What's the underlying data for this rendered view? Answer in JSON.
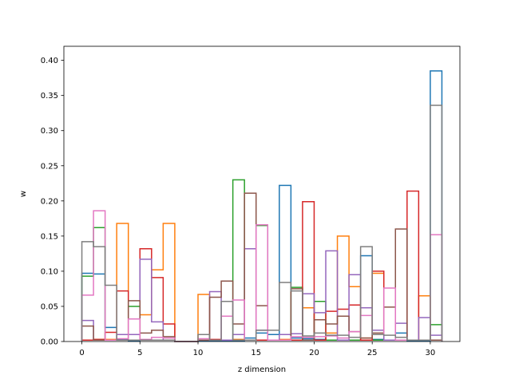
{
  "chart_data": {
    "type": "histogram-step",
    "xlabel": "z dimension",
    "ylabel": "w",
    "xlim": [
      -1.55,
      32.55
    ],
    "ylim": [
      0,
      0.42
    ],
    "xticks": [
      0,
      5,
      10,
      15,
      20,
      25,
      30
    ],
    "yticks": [
      0.0,
      0.05,
      0.1,
      0.15,
      0.2,
      0.25,
      0.3,
      0.35,
      0.4
    ],
    "ytick_labels": [
      "0.00",
      "0.05",
      "0.10",
      "0.15",
      "0.20",
      "0.25",
      "0.30",
      "0.35",
      "0.40"
    ],
    "bins": [
      0,
      1,
      2,
      3,
      4,
      5,
      6,
      7,
      8,
      9,
      10,
      11,
      12,
      13,
      14,
      15,
      16,
      17,
      18,
      19,
      20,
      21,
      22,
      23,
      24,
      25,
      26,
      27,
      28,
      29,
      30,
      31
    ],
    "series": [
      {
        "color": "#1f77b4",
        "values": [
          0.097,
          0.096,
          0.02,
          0.003,
          0.001,
          0.002,
          0.002,
          0.002,
          0,
          0,
          0.001,
          0.001,
          0.001,
          0.001,
          0.005,
          0.012,
          0.01,
          0.222,
          0.005,
          0.004,
          0.003,
          0.002,
          0.002,
          0.002,
          0.122,
          0.003,
          0.002,
          0.012,
          0.001,
          0.001,
          0.385
        ]
      },
      {
        "color": "#ff7f0e",
        "values": [
          0.002,
          0.003,
          0.003,
          0.168,
          0.002,
          0.038,
          0.102,
          0.168,
          0,
          0,
          0.067,
          0.002,
          0.002,
          0.003,
          0.002,
          0.002,
          0.002,
          0.003,
          0.002,
          0.048,
          0.002,
          0.012,
          0.15,
          0.078,
          0.005,
          0.097,
          0.002,
          0.002,
          0.002,
          0.065,
          0.002
        ]
      },
      {
        "color": "#2ca02c",
        "values": [
          0.093,
          0.162,
          0.002,
          0.002,
          0.05,
          0.002,
          0.002,
          0.002,
          0,
          0,
          0.002,
          0.002,
          0.002,
          0.23,
          0.002,
          0.165,
          0.002,
          0.002,
          0.077,
          0.002,
          0.057,
          0.002,
          0.002,
          0.002,
          0.002,
          0.002,
          0.002,
          0.002,
          0.002,
          0.002,
          0.024
        ]
      },
      {
        "color": "#d62728",
        "values": [
          0.002,
          0.003,
          0.013,
          0.072,
          0.002,
          0.132,
          0.091,
          0.025,
          0,
          0,
          0.002,
          0.003,
          0.002,
          0.002,
          0.002,
          0.002,
          0.002,
          0.002,
          0.002,
          0.199,
          0.002,
          0.043,
          0.046,
          0.052,
          0.002,
          0.1,
          0.002,
          0.002,
          0.214,
          0.002,
          0.002
        ]
      },
      {
        "color": "#9467bd",
        "values": [
          0.03,
          0.002,
          0.002,
          0.01,
          0.01,
          0.117,
          0.028,
          0.002,
          0,
          0,
          0.002,
          0.071,
          0.002,
          0.01,
          0.132,
          0.016,
          0.002,
          0.01,
          0.011,
          0.068,
          0.041,
          0.129,
          0.002,
          0.095,
          0.048,
          0.016,
          0.002,
          0.026,
          0.002,
          0.034,
          0.009
        ]
      },
      {
        "color": "#8c564b",
        "values": [
          0.022,
          0.002,
          0.002,
          0.002,
          0.058,
          0.012,
          0.016,
          0.007,
          0,
          0,
          0.002,
          0.063,
          0.086,
          0.025,
          0.211,
          0.051,
          0.002,
          0.002,
          0.075,
          0.002,
          0.031,
          0.025,
          0.036,
          0.014,
          0.005,
          0.012,
          0.049,
          0.16,
          0.002,
          0.002,
          0.002
        ]
      },
      {
        "color": "#e377c2",
        "values": [
          0.066,
          0.186,
          0.002,
          0.004,
          0.032,
          0.003,
          0.006,
          0.005,
          0,
          0,
          0.004,
          0.002,
          0.036,
          0.059,
          0.002,
          0.166,
          0.002,
          0.002,
          0.007,
          0.006,
          0.007,
          0.008,
          0.005,
          0.014,
          0.037,
          0.01,
          0.076,
          0.002,
          0.002,
          0.002,
          0.152
        ]
      },
      {
        "color": "#7f7f7f",
        "values": [
          0.142,
          0.135,
          0.08,
          0.002,
          0.002,
          0.002,
          0.002,
          0.002,
          0,
          0,
          0.01,
          0.002,
          0.057,
          0.002,
          0.002,
          0.016,
          0.016,
          0.084,
          0.072,
          0.008,
          0.012,
          0.009,
          0.009,
          0.006,
          0.135,
          0.01,
          0.009,
          0.006,
          0.002,
          0.002,
          0.336
        ]
      }
    ]
  }
}
